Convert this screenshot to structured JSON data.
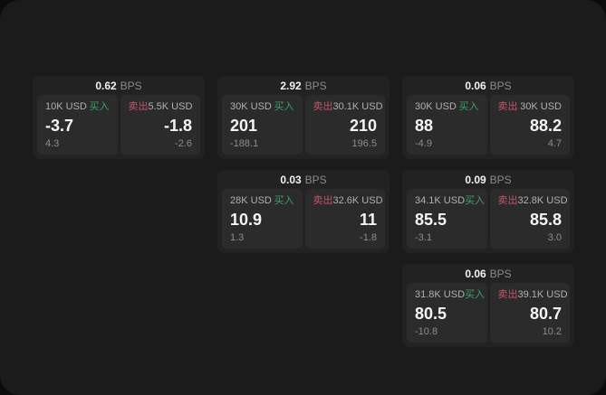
{
  "labels": {
    "bps_unit": "BPS",
    "buy": "买入",
    "sell": "卖出"
  },
  "colors": {
    "window_bg": "#1b1b1b",
    "card_bg": "#222222",
    "panel_bg": "#2b2b2b",
    "buy_accent": "#3da266",
    "sell_accent": "#c25568"
  },
  "cards": [
    {
      "bps": "0.62",
      "buy": {
        "amount": "10K USD",
        "price": "-3.7",
        "delta": "4.3"
      },
      "sell": {
        "amount": "5.5K USD",
        "price": "-1.8",
        "delta": "-2.6"
      }
    },
    {
      "bps": "2.92",
      "buy": {
        "amount": "30K USD",
        "price": "201",
        "delta": "-188.1"
      },
      "sell": {
        "amount": "30.1K USD",
        "price": "210",
        "delta": "196.5"
      }
    },
    {
      "bps": "0.06",
      "buy": {
        "amount": "30K USD",
        "price": "88",
        "delta": "-4.9"
      },
      "sell": {
        "amount": "30K USD",
        "price": "88.2",
        "delta": "4.7"
      }
    },
    {
      "bps": "0.03",
      "buy": {
        "amount": "28K USD",
        "price": "10.9",
        "delta": "1.3"
      },
      "sell": {
        "amount": "32.6K USD",
        "price": "11",
        "delta": "-1.8"
      }
    },
    {
      "bps": "0.09",
      "buy": {
        "amount": "34.1K USD",
        "price": "85.5",
        "delta": "-3.1"
      },
      "sell": {
        "amount": "32.8K USD",
        "price": "85.8",
        "delta": "3.0"
      }
    },
    {
      "bps": "0.06",
      "buy": {
        "amount": "31.8K USD",
        "price": "80.5",
        "delta": "-10.8"
      },
      "sell": {
        "amount": "39.1K USD",
        "price": "80.7",
        "delta": "10.2"
      }
    }
  ]
}
